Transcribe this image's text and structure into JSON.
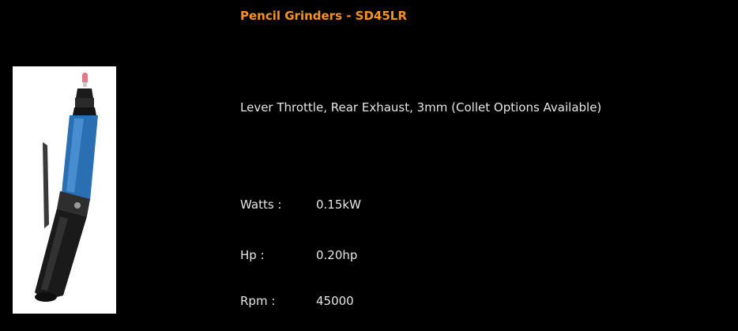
{
  "product": {
    "title": "Pencil Grinders - SD45LR",
    "description": "Lever Throttle, Rear Exhaust, 3mm (Collet Options Available)",
    "image_icon": "pencil-grinder-tool",
    "specs": [
      {
        "label": "Watts :",
        "value": "0.15kW"
      },
      {
        "label": "Hp :",
        "value": "0.20hp"
      },
      {
        "label": "Rpm :",
        "value": "45000"
      }
    ]
  },
  "colors": {
    "background": "#000000",
    "title": "#f7941d",
    "text": "#e6e6e6",
    "tool_body": "#2b6fb3",
    "tool_grip": "#1a1a1a"
  }
}
